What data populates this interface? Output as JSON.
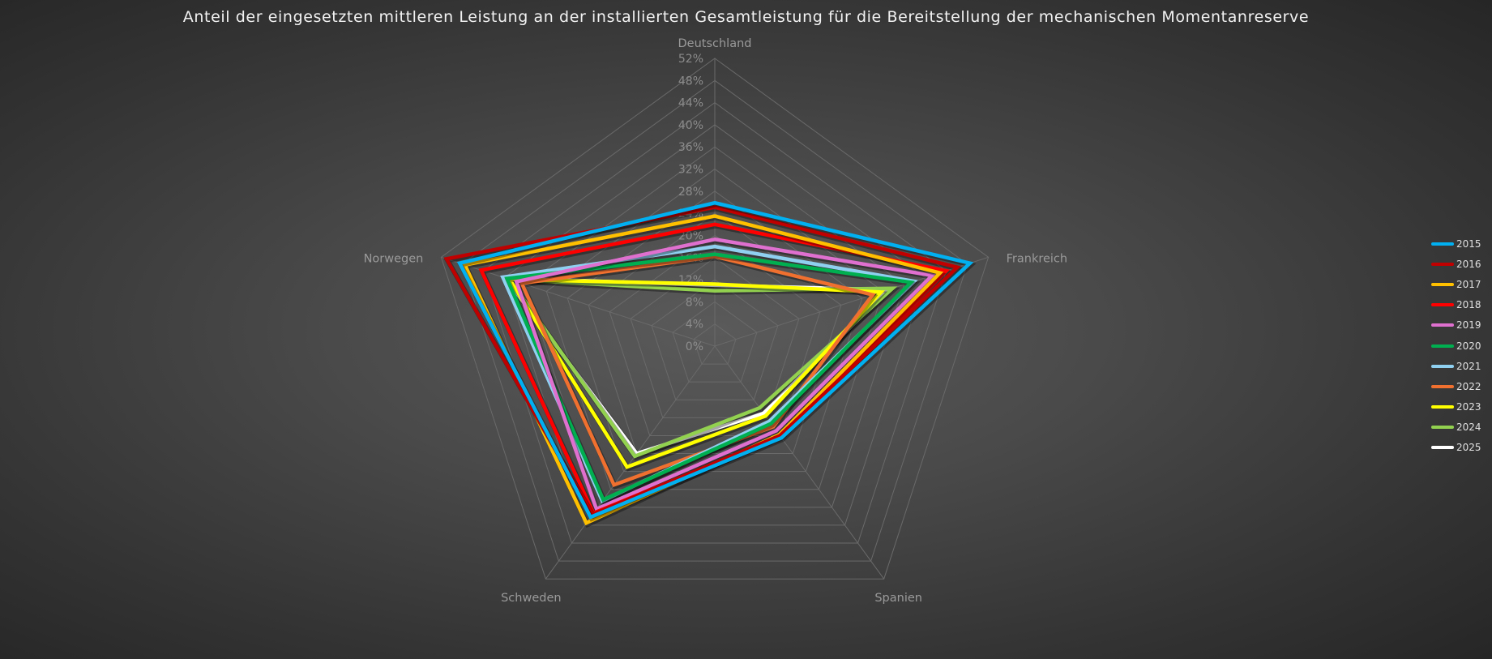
{
  "chart_data": {
    "type": "radar",
    "title": "Anteil der eingesetzten mittleren Leistung an der installierten Gesamtleistung für die Bereitstellung der mechanischen Momentanreserve",
    "categories": [
      "Deutschland",
      "Frankreich",
      "Spanien",
      "Schweden",
      "Norwegen"
    ],
    "rlim": [
      0,
      52
    ],
    "ticks": [
      "0%",
      "4%",
      "8%",
      "12%",
      "16%",
      "20%",
      "24%",
      "28%",
      "32%",
      "36%",
      "40%",
      "44%",
      "48%",
      "52%"
    ],
    "tick_values": [
      0,
      4,
      8,
      12,
      16,
      20,
      24,
      28,
      32,
      36,
      40,
      44,
      48,
      52
    ],
    "legend_position": "right",
    "series": [
      {
        "name": "2015",
        "color": "#00b0f0",
        "values": [
          25.9,
          48.5,
          20.5,
          38.2,
          48.5
        ]
      },
      {
        "name": "2016",
        "color": "#c00000",
        "values": [
          25.1,
          46.1,
          20.0,
          37.6,
          51.0
        ]
      },
      {
        "name": "2017",
        "color": "#ffc000",
        "values": [
          23.5,
          42.8,
          19.8,
          39.5,
          47.5
        ]
      },
      {
        "name": "2018",
        "color": "#ff0000",
        "values": [
          22.0,
          44.0,
          20.2,
          37.3,
          44.4
        ]
      },
      {
        "name": "2019",
        "color": "#e070d0",
        "values": [
          19.3,
          41.3,
          18.9,
          36.4,
          37.7
        ]
      },
      {
        "name": "2020",
        "color": "#00b050",
        "values": [
          16.6,
          37.3,
          17.3,
          34.3,
          39.5
        ]
      },
      {
        "name": "2021",
        "color": "#8fd0f0",
        "values": [
          18.0,
          37.9,
          16.8,
          34.6,
          40.3
        ]
      },
      {
        "name": "2022",
        "color": "#f07030",
        "values": [
          16.2,
          30.0,
          18.0,
          31.0,
          36.7
        ]
      },
      {
        "name": "2023",
        "color": "#ffff00",
        "values": [
          11.2,
          31.6,
          15.6,
          27.0,
          39.0
        ]
      },
      {
        "name": "2024",
        "color": "#92d050",
        "values": [
          10.0,
          33.8,
          13.8,
          24.6,
          39.0
        ]
      },
      {
        "name": "2025",
        "color": "#ffffff",
        "values": [
          11.0,
          33.0,
          15.0,
          24.0,
          39.8
        ]
      }
    ]
  }
}
